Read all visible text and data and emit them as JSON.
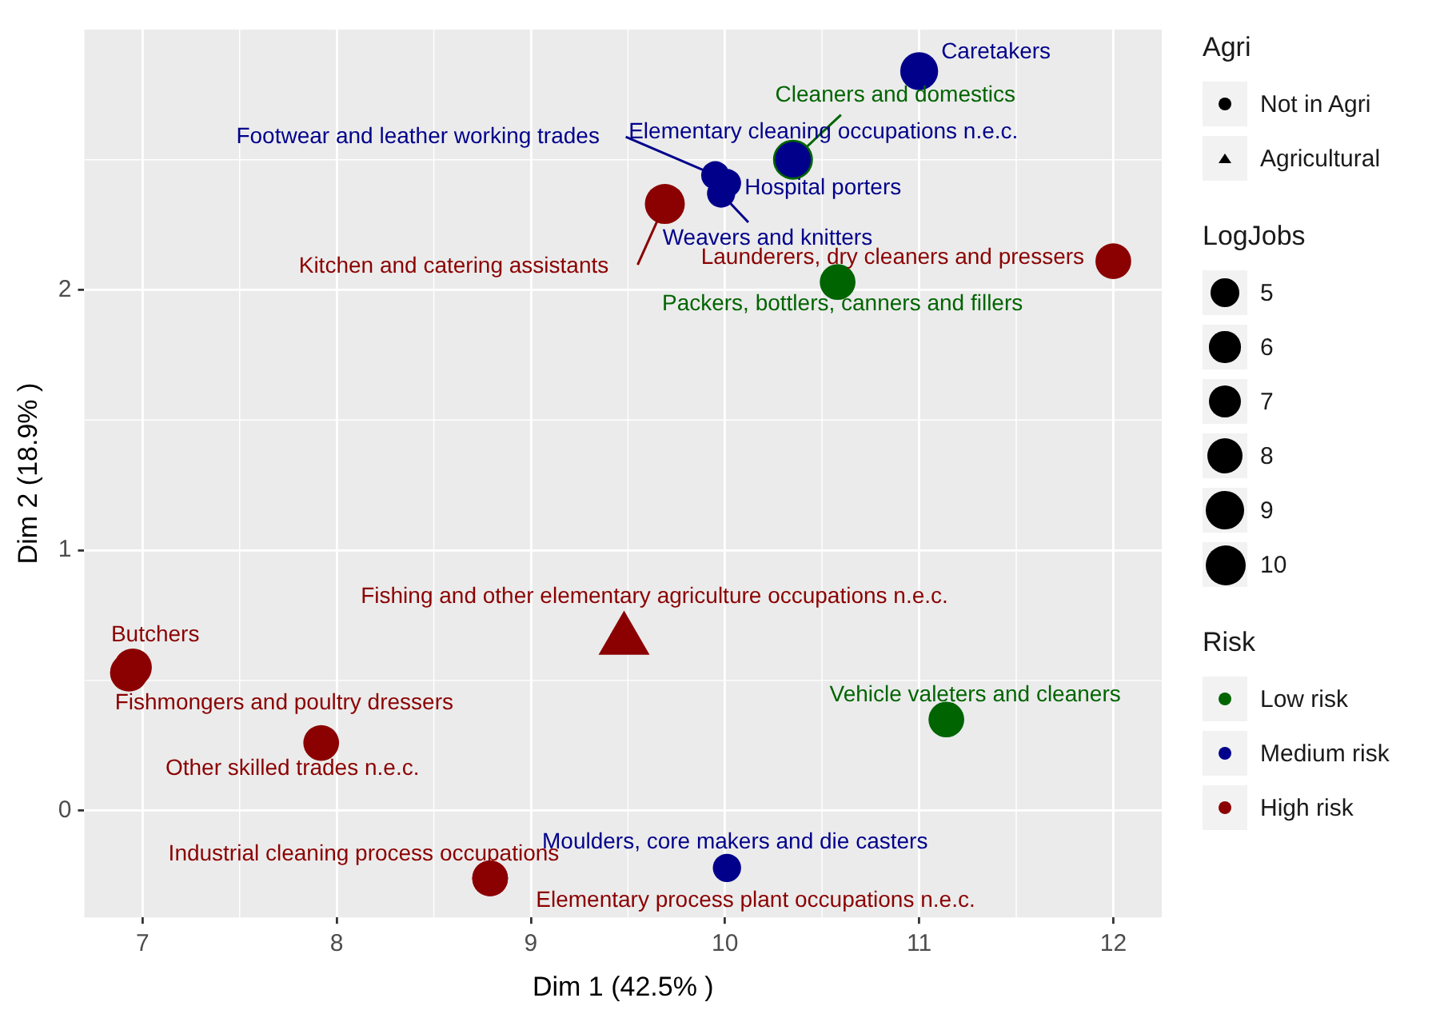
{
  "chart_data": {
    "type": "bubble",
    "xlabel": "Dim 1 (42.5% )",
    "ylabel": "Dim 2 (18.9% )",
    "xlim": [
      6.7,
      12.25
    ],
    "ylim": [
      -0.41,
      3.0
    ],
    "xticks": [
      7,
      8,
      9,
      10,
      11,
      12
    ],
    "yticks": [
      0,
      1,
      2
    ],
    "grid": true,
    "legend": "right",
    "legend_title": [
      "Agri",
      "LogJobs",
      "Risk"
    ],
    "annotations": [
      "Not in Agri",
      "Agricultural"
    ],
    "size_legend": [
      5,
      6,
      7,
      8,
      9,
      10
    ],
    "series": [
      {
        "name": "Low risk",
        "color": "#006400",
        "marker": "circle",
        "x": [
          10.35,
          10.58,
          11.14
        ],
        "values": [
          2.5,
          2.03,
          0.35
        ],
        "sizes": [
          10,
          8,
          8
        ],
        "value_labels": [
          "Cleaners and domestics",
          "Packers, bottlers, canners and fillers",
          "Vehicle valeters and cleaners"
        ]
      },
      {
        "name": "Medium risk",
        "color": "#00008b",
        "marker": "circle",
        "x": [
          11.0,
          10.35,
          9.95,
          10.01,
          9.98,
          10.01
        ],
        "values": [
          2.84,
          2.5,
          2.44,
          2.41,
          2.37,
          -0.22
        ],
        "sizes": [
          9,
          8,
          5,
          5,
          5,
          5
        ],
        "value_labels": [
          "Caretakers",
          "Elementary cleaning occupations n.e.c.",
          "Footwear and leather working trades",
          "Hospital porters",
          "Weavers and knitters",
          "Moulders, core makers and die casters"
        ]
      },
      {
        "name": "High risk",
        "color": "#8b0000",
        "marker": "circle",
        "x": [
          9.69,
          12.0,
          6.95,
          6.93,
          7.92,
          8.79,
          8.79
        ],
        "values": [
          2.33,
          2.11,
          0.55,
          0.53,
          0.26,
          -0.26,
          -0.26
        ],
        "sizes": [
          10,
          8,
          9,
          9,
          8,
          8,
          8
        ],
        "value_labels": [
          "Kitchen and catering assistants",
          "Launderers, dry cleaners and pressers",
          "Butchers",
          "Fishmongers and poultry dressers",
          "Other skilled trades n.e.c.",
          "Industrial cleaning process occupations",
          "Elementary process plant occupations n.e.c."
        ]
      },
      {
        "color": "#8b0000",
        "marker": "triangle",
        "x": [
          9.48
        ],
        "values": [
          0.655
        ],
        "sizes": [
          9
        ],
        "value_labels": [
          "Fishing and other elementary agriculture occupations n.e.c."
        ]
      }
    ]
  }
}
